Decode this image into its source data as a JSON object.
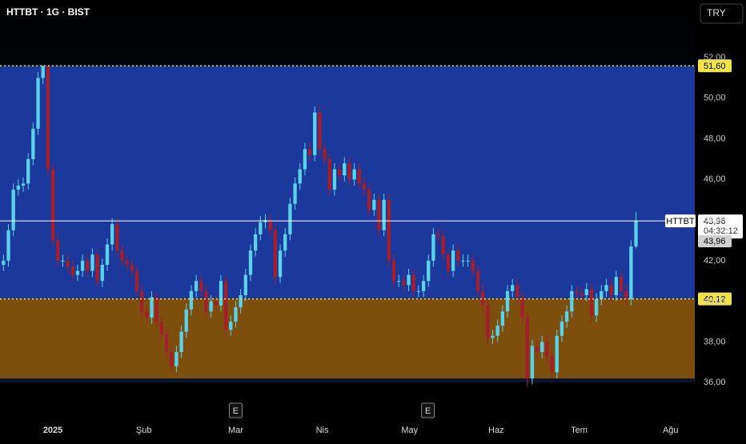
{
  "chart_data": {
    "type": "candlestick",
    "title": "HTTBT · 1G · BIST",
    "currency": "TRY",
    "up_color": "#5ad2ea",
    "down_color": "#a41e2c",
    "open": [
      41.8,
      42.0,
      43.5,
      45.5,
      45.7,
      45.8,
      47.0,
      48.5,
      51.0,
      51.6,
      46.5,
      43.0,
      42.0,
      42.0,
      41.7,
      41.3,
      41.5,
      42.0,
      41.5,
      42.3,
      41.0,
      41.8,
      42.8,
      43.8,
      42.5,
      42.0,
      41.8,
      41.5,
      40.5,
      39.5,
      39.2,
      40.2,
      39.0,
      38.4,
      37.5,
      36.8,
      37.5,
      38.5,
      39.6,
      40.5,
      41.0,
      40.5,
      39.5,
      40.0,
      39.8,
      41.0,
      38.6,
      39.0,
      39.7,
      40.3,
      41.3,
      42.5,
      43.3,
      43.9,
      44.0,
      43.5,
      41.2,
      42.5,
      43.3,
      44.8,
      45.8,
      46.5,
      47.5,
      47.2,
      49.3,
      47.5,
      47.0,
      45.5,
      46.5,
      46.2,
      46.8,
      46.0,
      46.5,
      45.8,
      45.5,
      44.5,
      45.0,
      43.5,
      45.0,
      42.0,
      41.0,
      41.0,
      40.8,
      41.3,
      40.5,
      40.5,
      41.0,
      42.0,
      43.3,
      43.2,
      42.3,
      41.5,
      42.5,
      42.0,
      42.0,
      42.0,
      41.5,
      40.5,
      39.8,
      38.2,
      38.3,
      38.8,
      39.5,
      40.5,
      40.8,
      40.2,
      39.2,
      36.2,
      37.8,
      37.5,
      38.0,
      37.3,
      36.5,
      38.3,
      39.0,
      39.5,
      40.5,
      40.4,
      40.3,
      40.6,
      39.3,
      40.1,
      40.5,
      40.8,
      40.3,
      41.2,
      40.5,
      40.1,
      42.7
    ],
    "high": [
      42.3,
      43.8,
      45.8,
      46.0,
      46.1,
      47.3,
      48.8,
      51.3,
      51.6,
      51.6,
      46.8,
      43.3,
      42.3,
      42.3,
      42.0,
      41.8,
      42.3,
      42.3,
      42.6,
      42.6,
      42.1,
      43.1,
      44.1,
      44.1,
      42.8,
      42.3,
      42.1,
      41.8,
      40.8,
      39.8,
      40.5,
      40.5,
      39.3,
      38.7,
      37.8,
      37.8,
      38.8,
      39.9,
      40.8,
      41.3,
      41.3,
      40.8,
      40.3,
      40.3,
      41.3,
      41.3,
      39.3,
      40.0,
      40.6,
      41.6,
      42.8,
      43.6,
      44.2,
      44.3,
      44.3,
      43.8,
      42.8,
      43.6,
      45.1,
      46.1,
      46.8,
      47.8,
      47.8,
      49.6,
      49.6,
      47.8,
      47.3,
      46.8,
      46.8,
      47.1,
      47.1,
      46.8,
      46.8,
      46.1,
      45.8,
      45.3,
      45.3,
      45.3,
      45.3,
      42.3,
      41.3,
      41.3,
      41.6,
      41.6,
      40.8,
      41.3,
      42.3,
      43.6,
      43.6,
      43.5,
      42.6,
      42.8,
      42.8,
      42.3,
      42.3,
      42.3,
      41.8,
      40.8,
      40.1,
      38.6,
      39.1,
      39.8,
      40.8,
      41.1,
      41.1,
      40.5,
      39.5,
      38.1,
      38.1,
      38.3,
      38.3,
      37.6,
      38.6,
      39.3,
      39.8,
      40.8,
      40.8,
      40.7,
      40.9,
      40.9,
      40.4,
      40.8,
      41.1,
      41.1,
      41.5,
      41.5,
      40.8,
      43.0,
      44.4
    ],
    "low": [
      41.5,
      41.7,
      43.2,
      45.2,
      45.4,
      45.5,
      46.7,
      48.2,
      50.7,
      46.2,
      42.7,
      41.7,
      41.7,
      41.4,
      41.0,
      41.0,
      41.2,
      41.2,
      41.2,
      40.7,
      40.7,
      41.5,
      42.5,
      42.2,
      41.7,
      41.5,
      41.2,
      40.2,
      39.2,
      38.9,
      38.9,
      38.7,
      38.1,
      37.2,
      36.5,
      36.5,
      37.2,
      38.2,
      39.3,
      40.2,
      40.2,
      39.2,
      39.2,
      39.5,
      39.5,
      38.3,
      38.3,
      38.7,
      39.4,
      40.0,
      41.0,
      42.2,
      43.0,
      43.6,
      43.2,
      40.9,
      40.9,
      42.2,
      43.0,
      44.5,
      45.5,
      46.2,
      46.9,
      46.9,
      47.2,
      46.7,
      45.2,
      45.2,
      45.9,
      45.9,
      45.7,
      45.7,
      45.5,
      45.2,
      44.2,
      44.2,
      43.2,
      43.2,
      41.7,
      40.7,
      40.7,
      40.5,
      40.5,
      40.2,
      40.2,
      40.2,
      40.7,
      41.7,
      42.9,
      42.0,
      41.2,
      41.2,
      41.7,
      41.7,
      41.7,
      41.2,
      40.2,
      39.5,
      37.9,
      37.9,
      38.0,
      38.5,
      39.2,
      40.2,
      39.9,
      38.9,
      35.8,
      35.9,
      37.2,
      37.2,
      37.0,
      36.2,
      36.2,
      38.0,
      38.7,
      39.2,
      40.1,
      40.0,
      40.0,
      39.0,
      39.0,
      39.8,
      40.2,
      40.0,
      40.0,
      40.2,
      39.8,
      39.8,
      42.6
    ],
    "close": [
      42.0,
      43.5,
      45.5,
      45.7,
      45.8,
      47.0,
      48.5,
      51.0,
      51.6,
      46.5,
      43.0,
      42.0,
      42.0,
      41.7,
      41.3,
      41.5,
      42.0,
      41.5,
      42.3,
      41.0,
      41.8,
      42.8,
      43.8,
      42.5,
      42.0,
      41.8,
      41.5,
      40.5,
      39.5,
      39.2,
      40.2,
      39.0,
      38.4,
      37.5,
      36.8,
      37.5,
      38.5,
      39.6,
      40.5,
      41.0,
      40.5,
      39.5,
      40.0,
      39.8,
      41.0,
      38.6,
      39.0,
      39.7,
      40.3,
      41.3,
      42.5,
      43.3,
      43.9,
      44.0,
      43.5,
      41.2,
      42.5,
      43.3,
      44.8,
      45.8,
      46.5,
      47.5,
      47.2,
      49.3,
      47.5,
      47.0,
      45.5,
      46.5,
      46.2,
      46.8,
      46.0,
      46.5,
      45.8,
      45.5,
      44.5,
      45.0,
      43.5,
      45.0,
      42.0,
      41.0,
      41.0,
      40.8,
      41.3,
      40.5,
      40.5,
      41.0,
      42.0,
      43.3,
      43.2,
      42.3,
      41.5,
      42.5,
      42.0,
      42.0,
      42.0,
      41.5,
      40.5,
      39.8,
      38.2,
      38.3,
      38.8,
      39.5,
      40.5,
      40.8,
      40.2,
      39.2,
      36.2,
      37.8,
      37.5,
      38.0,
      37.3,
      36.5,
      38.3,
      39.0,
      39.5,
      40.5,
      40.4,
      40.3,
      40.6,
      39.3,
      40.1,
      40.5,
      40.8,
      40.3,
      41.2,
      40.5,
      40.1,
      42.7,
      43.96
    ],
    "xlim": [
      -0.7,
      139.9
    ],
    "xticks": [
      {
        "value": 10.0,
        "label": "2025"
      },
      {
        "value": 28.4,
        "label": "Şub"
      },
      {
        "value": 47.0,
        "label": "Mar"
      },
      {
        "value": 64.5,
        "label": "Nis"
      },
      {
        "value": 82.2,
        "label": "May"
      },
      {
        "value": 99.7,
        "label": "Haz"
      },
      {
        "value": 116.5,
        "label": "Tem"
      },
      {
        "value": 135.0,
        "label": "Ağu"
      }
    ],
    "ylim": [
      34.35,
      54.84
    ],
    "yticks": [
      {
        "value": 36,
        "label": "36,00"
      },
      {
        "value": 38,
        "label": "38,00"
      },
      {
        "value": 40,
        "label": "40,00"
      },
      {
        "value": 42,
        "label": "42,00"
      },
      {
        "value": 44,
        "label": "44,00"
      },
      {
        "value": 46,
        "label": "46,00"
      },
      {
        "value": 48,
        "label": "48,00"
      },
      {
        "value": 50,
        "label": "50,00"
      },
      {
        "value": 52,
        "label": "52,00"
      }
    ],
    "zones": [
      {
        "from": 40.12,
        "to": 51.6,
        "color": "#1b389c"
      },
      {
        "from": 36.2,
        "to": 40.12,
        "color": "#7e4f0c"
      }
    ],
    "levels": [
      {
        "value": 51.6,
        "label": "51,60"
      },
      {
        "value": 40.12,
        "label": "40,12"
      }
    ],
    "last_price": {
      "symbol": "HTTBT",
      "value": 43.96,
      "label": "43,96",
      "countdown": "04:32:12",
      "close_label": "43,96"
    },
    "events": [
      {
        "x": 47.0,
        "label": "E"
      },
      {
        "x": 85.9,
        "label": "E"
      }
    ]
  }
}
